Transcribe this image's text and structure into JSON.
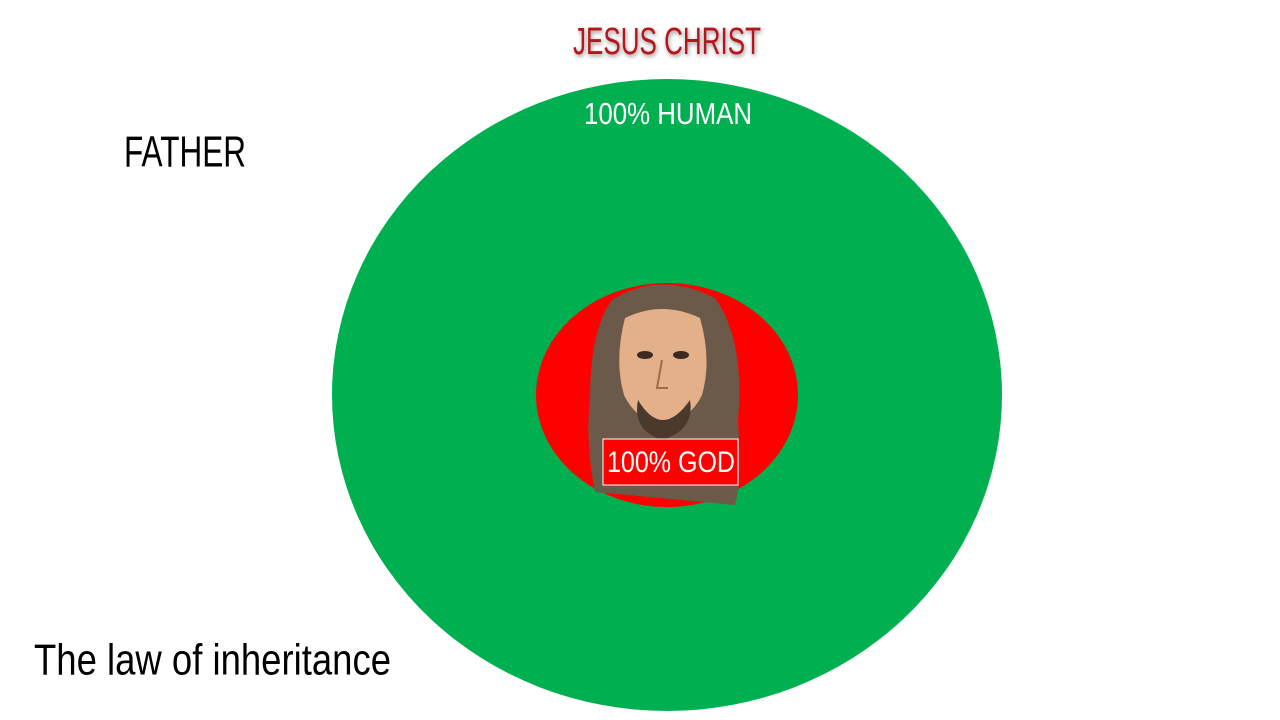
{
  "title": "JESUS CHRIST",
  "outer": {
    "label": "100% HUMAN"
  },
  "inner": {
    "label": "100% GOD"
  },
  "side_label": "FATHER",
  "caption": "The law of inheritance"
}
